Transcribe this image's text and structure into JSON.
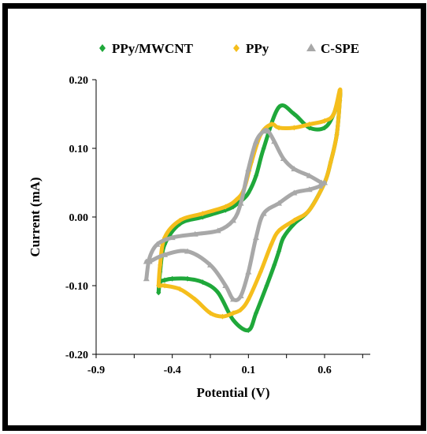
{
  "chart_data": {
    "type": "scatter",
    "title": "",
    "xlabel": "Potential (V)",
    "ylabel": "Current (mA)",
    "xlim": [
      -0.9,
      0.9
    ],
    "ylim": [
      -0.2,
      0.2
    ],
    "x_ticks": [
      -0.9,
      -0.4,
      0.1,
      0.6
    ],
    "x_tick_labels": [
      "-0.9",
      "-0.4",
      "0.1",
      "0.6"
    ],
    "y_ticks": [
      0.2,
      0.1,
      0.0,
      -0.1,
      -0.2
    ],
    "y_tick_labels": [
      "0.20",
      "0.10",
      "0.00",
      "-0.10",
      "-0.20"
    ],
    "grid": false,
    "legend_position": "top",
    "series": [
      {
        "name": "PPy/MWCNT",
        "color": "#1fa83a",
        "marker": "diamond",
        "x": [
          -0.49,
          -0.48,
          -0.45,
          -0.35,
          -0.2,
          -0.05,
          0.0,
          0.03,
          0.06,
          0.1,
          0.15,
          0.2,
          0.3,
          0.4,
          0.5,
          0.6,
          0.66,
          0.7,
          0.7,
          0.68,
          0.64,
          0.6,
          0.5,
          0.4,
          0.33,
          0.3,
          0.27,
          0.22,
          0.15,
          0.1,
          0.0,
          -0.1,
          -0.2,
          -0.3,
          -0.4,
          -0.45,
          -0.48,
          -0.49
        ],
        "y": [
          -0.11,
          -0.08,
          -0.04,
          -0.01,
          0.0,
          0.01,
          0.015,
          0.02,
          0.025,
          0.035,
          0.06,
          0.1,
          0.16,
          0.15,
          0.13,
          0.13,
          0.15,
          0.18,
          0.17,
          0.12,
          0.08,
          0.05,
          0.01,
          -0.01,
          -0.03,
          -0.05,
          -0.07,
          -0.1,
          -0.14,
          -0.165,
          -0.15,
          -0.11,
          -0.095,
          -0.09,
          -0.09,
          -0.092,
          -0.095,
          -0.11
        ]
      },
      {
        "name": "PPy",
        "color": "#f5be1c",
        "marker": "diamond",
        "x": [
          -0.49,
          -0.48,
          -0.45,
          -0.35,
          -0.2,
          -0.05,
          0.02,
          0.07,
          0.12,
          0.18,
          0.25,
          0.3,
          0.4,
          0.5,
          0.6,
          0.66,
          0.7,
          0.7,
          0.68,
          0.64,
          0.6,
          0.5,
          0.4,
          0.3,
          0.25,
          0.18,
          0.1,
          0.05,
          0.0,
          -0.07,
          -0.15,
          -0.25,
          -0.35,
          -0.45,
          -0.48,
          -0.49
        ],
        "y": [
          -0.1,
          -0.07,
          -0.03,
          -0.005,
          0.005,
          0.015,
          0.025,
          0.04,
          0.08,
          0.12,
          0.135,
          0.13,
          0.13,
          0.135,
          0.14,
          0.15,
          0.185,
          0.17,
          0.12,
          0.08,
          0.05,
          0.01,
          -0.005,
          -0.02,
          -0.04,
          -0.08,
          -0.12,
          -0.135,
          -0.14,
          -0.145,
          -0.14,
          -0.12,
          -0.105,
          -0.1,
          -0.1,
          -0.1
        ]
      },
      {
        "name": "C-SPE",
        "color": "#a8a8a8",
        "marker": "triangle",
        "x": [
          -0.57,
          -0.55,
          -0.5,
          -0.4,
          -0.25,
          -0.1,
          0.0,
          0.05,
          0.1,
          0.15,
          0.2,
          0.23,
          0.27,
          0.33,
          0.4,
          0.5,
          0.58,
          0.6,
          0.57,
          0.5,
          0.4,
          0.3,
          0.2,
          0.15,
          0.1,
          0.05,
          0.0,
          -0.05,
          -0.15,
          -0.3,
          -0.45,
          -0.55,
          -0.57
        ],
        "y": [
          -0.09,
          -0.06,
          -0.04,
          -0.03,
          -0.025,
          -0.02,
          -0.005,
          0.02,
          0.07,
          0.11,
          0.125,
          0.125,
          0.11,
          0.085,
          0.07,
          0.06,
          0.05,
          0.05,
          0.045,
          0.04,
          0.035,
          0.02,
          0.005,
          -0.03,
          -0.08,
          -0.115,
          -0.12,
          -0.1,
          -0.07,
          -0.05,
          -0.055,
          -0.065,
          -0.065
        ]
      }
    ]
  }
}
